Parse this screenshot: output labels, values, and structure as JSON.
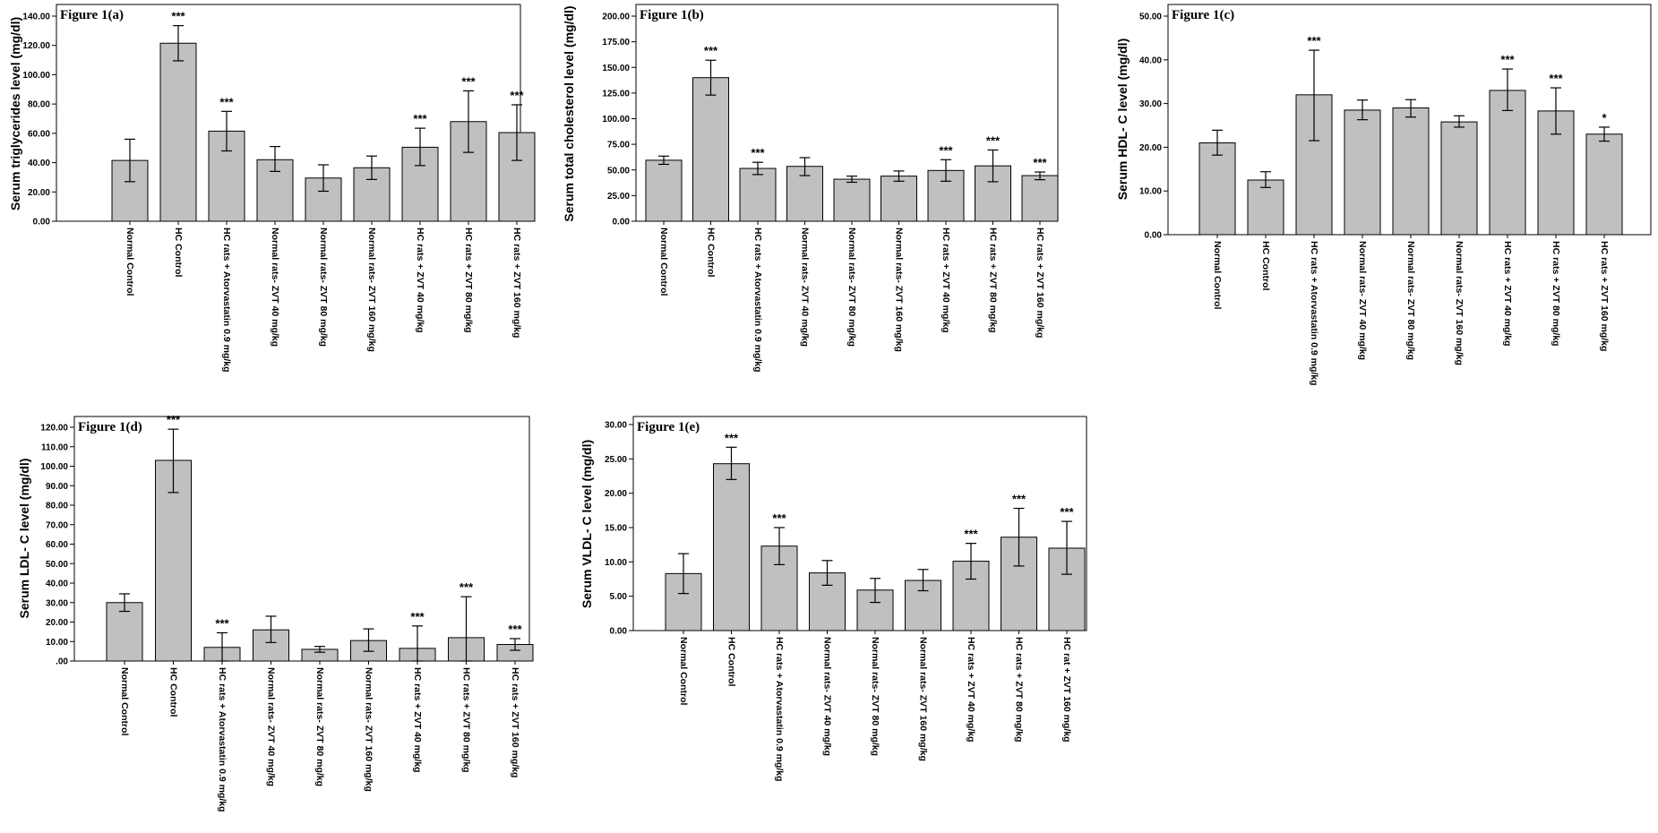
{
  "chart_data": [
    {
      "type": "bar",
      "title": "Figure 1(a)",
      "ylabel": "Serum triglycerides level (mg/dl)",
      "ylim": [
        0,
        140
      ],
      "yticks": [
        "0.00",
        "20.00",
        "40.00",
        "60.00",
        "80.00",
        "100.00",
        "120.00",
        "140.00"
      ],
      "categories": [
        "Normal Control",
        "HC Control",
        "HC rats + Atorvastatin 0.9 mg/kg",
        "Normal rats- ZVT 40 mg/kg",
        "Normal rats- ZVT 80 mg/kg",
        "Normal rats- ZVT 160 mg/kg",
        "HC rats + ZVT 40 mg/kg",
        "HC rats + ZVT 80 mg/kg",
        "HC rats + ZVT 160 mg/kg"
      ],
      "values": [
        41.5,
        121.5,
        61.5,
        42.0,
        29.5,
        36.5,
        50.5,
        68.0,
        60.5
      ],
      "err_low": [
        27.0,
        109.5,
        48.0,
        34.0,
        20.5,
        28.5,
        38.0,
        47.0,
        41.5
      ],
      "err_high": [
        56.0,
        133.5,
        75.0,
        51.0,
        38.5,
        44.5,
        63.5,
        89.0,
        79.5
      ],
      "significance": [
        "",
        "***",
        "***",
        "",
        "",
        "",
        "***",
        "***",
        "***"
      ]
    },
    {
      "type": "bar",
      "title": "Figure 1(b)",
      "ylabel": "Serum total cholesterol level (mg/dl)",
      "ylim": [
        0,
        200
      ],
      "yticks": [
        "0.00",
        "25.00",
        "50.00",
        "75.00",
        "100.00",
        "125.00",
        "150.00",
        "175.00",
        "200.00"
      ],
      "categories": [
        "Normal Control",
        "HC Control",
        "HC rats + Atorvastatin 0.9 mg/kg",
        "Normal rats- ZVT 40 mg/kg",
        "Normal rats- ZVT 80 mg/kg",
        "Normal rats- ZVT 160 mg/kg",
        "HC rats + ZVT 40 mg/kg",
        "HC rats + ZVT 80 mg/kg",
        "HC rats + ZVT 160 mg/kg"
      ],
      "values": [
        59.5,
        140.0,
        51.5,
        53.5,
        41.0,
        44.0,
        49.5,
        54.0,
        44.5
      ],
      "err_low": [
        55.5,
        123.0,
        45.5,
        44.5,
        38.0,
        39.0,
        39.0,
        38.5,
        40.5
      ],
      "err_high": [
        63.5,
        157.0,
        57.5,
        62.0,
        44.0,
        49.0,
        60.0,
        69.5,
        48.0
      ],
      "significance": [
        "",
        "***",
        "***",
        "",
        "",
        "",
        "***",
        "***",
        "***"
      ]
    },
    {
      "type": "bar",
      "title": "Figure 1(c)",
      "ylabel": "Serum HDL- C level (mg/dl)",
      "ylim": [
        0,
        50
      ],
      "yticks": [
        "0.00",
        "10.00",
        "20.00",
        "30.00",
        "40.00",
        "50.00"
      ],
      "categories": [
        "Normal Control",
        "HC Control",
        "HC rats + Atorvastatin 0.9 mg/kg",
        "Normal rats- ZVT 40 mg/kg",
        "Normal rats- ZVT 80 mg/kg",
        "Normal rats- ZVT 160 mg/kg",
        "HC rats + ZVT 40 mg/kg",
        "HC rats + ZVT 80 mg/kg",
        "HC rats + ZVT 160 mg/kg"
      ],
      "values": [
        21.0,
        12.5,
        32.0,
        28.5,
        29.0,
        25.8,
        33.0,
        28.3,
        23.0
      ],
      "err_low": [
        18.2,
        10.8,
        21.5,
        26.3,
        26.9,
        24.6,
        28.4,
        23.0,
        21.4
      ],
      "err_high": [
        23.9,
        14.4,
        42.2,
        30.8,
        30.9,
        27.2,
        37.9,
        33.6,
        24.6
      ],
      "significance": [
        "",
        "",
        "***",
        "",
        "",
        "",
        "***",
        "***",
        "*"
      ]
    },
    {
      "type": "bar",
      "title": "Figure 1(d)",
      "ylabel": "Serum LDL- C level (mg/dl)",
      "ylim": [
        0,
        120
      ],
      "yticks": [
        ".00",
        "10.00",
        "20.00",
        "30.00",
        "40.00",
        "50.00",
        "60.00",
        "70.00",
        "80.00",
        "90.00",
        "100.00",
        "110.00",
        "120.00"
      ],
      "categories": [
        "Normal Control",
        "HC Control",
        "HC rats + Atorvastatin 0.9 mg/kg",
        "Normal rats- ZVT 40 mg/kg",
        "Normal rats- ZVT 80 mg/kg",
        "Normal rats- ZVT 160 mg/kg",
        "HC rats + ZVT 40 mg/kg",
        "HC rats + ZVT 80 mg/kg",
        "HC rats + ZVT 160 mg/kg"
      ],
      "values": [
        30.0,
        103.0,
        7.0,
        16.0,
        6.0,
        10.5,
        6.5,
        12.0,
        8.5
      ],
      "err_low": [
        25.5,
        86.5,
        0.0,
        9.5,
        4.5,
        5.0,
        0.0,
        0.0,
        5.5
      ],
      "err_high": [
        34.5,
        119.0,
        14.5,
        23.0,
        7.5,
        16.5,
        18.0,
        33.0,
        11.5
      ],
      "significance": [
        "",
        "***",
        "***",
        "",
        "",
        "",
        "***",
        "***",
        "***"
      ]
    },
    {
      "type": "bar",
      "title": "Figure 1(e)",
      "ylabel": "Serum VLDL- C level (mg/dl)",
      "ylim": [
        0,
        30
      ],
      "yticks": [
        "0.00",
        "5.00",
        "10.00",
        "15.00",
        "20.00",
        "25.00",
        "30.00"
      ],
      "categories": [
        "Normal Control",
        "HC Control",
        "HC rats + Atorvastatin 0.9 mg/kg",
        "Normal rats- ZVT 40 mg/kg",
        "Normal rats- ZVT 80 mg/kg",
        "Normal rats- ZVT 160 mg/kg",
        "HC rats + ZVT 40 mg/kg",
        "HC rats + ZVT 80 mg/kg",
        "HC rat + ZVT 160 mg/kg"
      ],
      "values": [
        8.3,
        24.3,
        12.3,
        8.4,
        5.9,
        7.3,
        10.1,
        13.6,
        12.0
      ],
      "err_low": [
        5.4,
        22.0,
        9.6,
        6.6,
        4.1,
        5.8,
        7.5,
        9.4,
        8.2
      ],
      "err_high": [
        11.2,
        26.7,
        15.0,
        10.2,
        7.6,
        8.9,
        12.7,
        17.8,
        15.9
      ],
      "significance": [
        "",
        "***",
        "***",
        "",
        "",
        "",
        "***",
        "***",
        "***"
      ]
    }
  ]
}
